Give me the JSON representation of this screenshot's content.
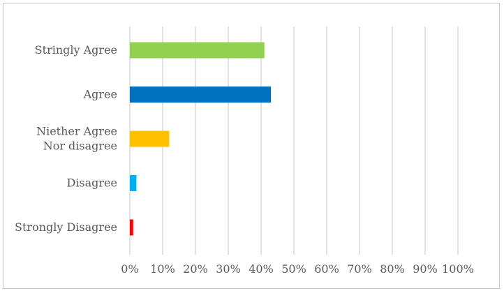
{
  "chart_data": {
    "type": "bar",
    "orientation": "horizontal",
    "categories": [
      "Stringly Agree",
      "Agree",
      "Niether Agree Nor disagree",
      "Disagree",
      "Strongly Disagree"
    ],
    "category_lines": [
      [
        "Stringly Agree"
      ],
      [
        "Agree"
      ],
      [
        "Niether Agree",
        "Nor disagree"
      ],
      [
        "Disagree"
      ],
      [
        "Strongly Disagree"
      ]
    ],
    "values": [
      41,
      43,
      12,
      2,
      1
    ],
    "colors": [
      "#92d050",
      "#0070c0",
      "#ffc000",
      "#00b0f0",
      "#ff0000"
    ],
    "x_ticks": [
      "0%",
      "10%",
      "20%",
      "30%",
      "40%",
      "50%",
      "60%",
      "70%",
      "80%",
      "90%",
      "100%"
    ],
    "xlim": [
      0,
      100
    ],
    "grid": "vertical",
    "legend": "none",
    "title": "",
    "xlabel": "",
    "ylabel": ""
  }
}
